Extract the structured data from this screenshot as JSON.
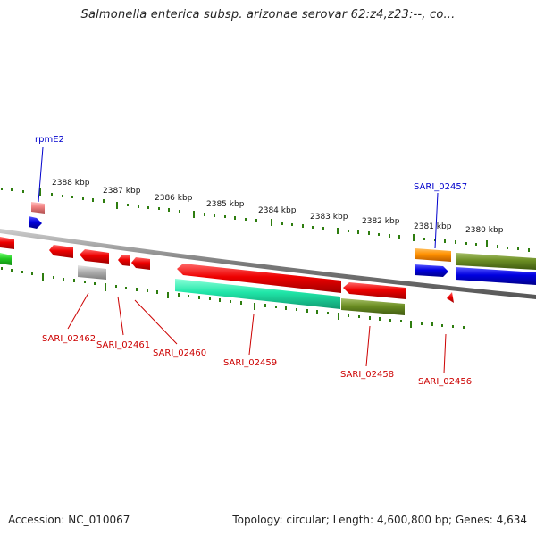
{
  "title": "Salmonella enterica subsp. arizonae serovar 62:z4,z23:--, co...",
  "footer": {
    "accession": "Accession: NC_010067",
    "summary": "Topology: circular; Length: 4,600,800 bp; Genes: 4,634"
  },
  "scale_labels": [
    "2388 kbp",
    "2387 kbp",
    "2386 kbp",
    "2385 kbp",
    "2384 kbp",
    "2383 kbp",
    "2382 kbp",
    "2381 kbp",
    "2380 kbp"
  ],
  "genes": {
    "rpmE2": "rpmE2",
    "sari_02457": "SARI_02457",
    "sari_02462": "SARI_02462",
    "sari_02461": "SARI_02461",
    "sari_02460": "SARI_02460",
    "sari_02459": "SARI_02459",
    "sari_02458": "SARI_02458",
    "sari_02456": "SARI_02456"
  },
  "colors": {
    "backbone": "#888888",
    "tick": "#2e7d0f",
    "red_gene": "#e00000",
    "pink_gene": "#f08080",
    "blue_gene": "#0000dd",
    "green_gene": "#22cc22",
    "teal_gene": "#22e6a8",
    "olive_gene": "#6b8e23",
    "orange_gene": "#ff8c00",
    "grey_gene": "#b0b0b0",
    "blue_label": "#0000cc",
    "red_label": "#cc0000"
  }
}
